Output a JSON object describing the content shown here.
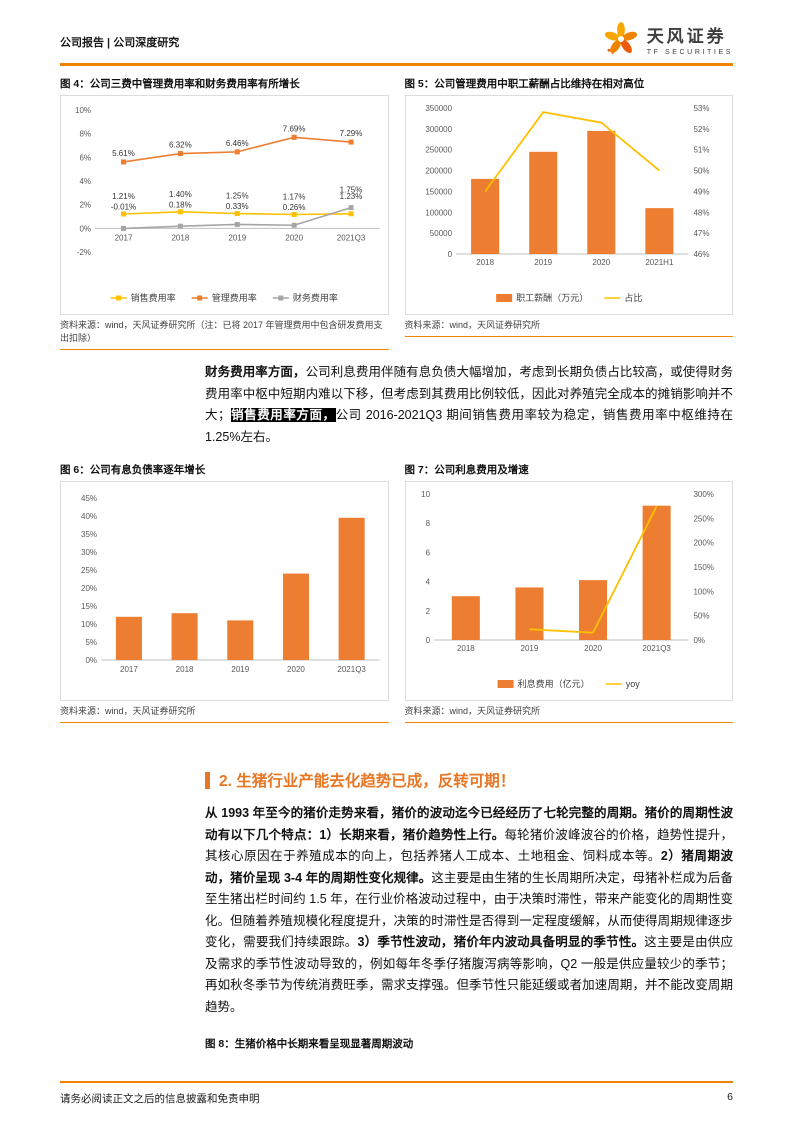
{
  "header": {
    "left": "公司报告 | 公司深度研究",
    "brand": {
      "name": "天风证券",
      "sub": "TF SECURITIES"
    }
  },
  "figures": {
    "fig4": {
      "title": "图 4：公司三费中管理费用率和财务费用率有所增长",
      "source": "资料来源：wind，天风证券研究所（注：已将 2017 年管理费用中包含研发费用支出扣除）"
    },
    "fig5": {
      "title": "图 5：公司管理费用中职工薪酬占比维持在相对高位",
      "source": "资料来源：wind，天风证券研究所"
    },
    "fig6": {
      "title": "图 6：公司有息负债率逐年增长",
      "source": "资料来源：wind，天风证券研究所"
    },
    "fig7": {
      "title": "图 7：公司利息费用及增速",
      "source": "资料来源：wind，天风证券研究所"
    },
    "fig8": {
      "title": "图 8：生猪价格中长期来看呈现显著周期波动"
    }
  },
  "body": {
    "para1_runs": [
      {
        "t": "财务费用率方面，",
        "s": "bold"
      },
      {
        "t": "公司利息费用伴随有息负债大幅增加，考虑到长期负债占比较高，或使得财务费用率中枢中短期内难以下移，但考虑到其费用比例较低，因此对养殖完全成本的摊销影响并不大；",
        "s": "normal"
      },
      {
        "t": "销售费用率方面，",
        "s": "highlight"
      },
      {
        "t": "公司 2016-2021Q3 期间销售费用率较为稳定，销售费用率中枢维持在 1.25%左右。",
        "s": "normal"
      }
    ],
    "para2_runs": [
      {
        "t": "从 1993 年至今的猪价走势来看，猪价的波动迄今已经经历了七轮完整的周期。猪价的周期性波动有以下几个特点：1）长期来看，猪价趋势性上行。",
        "s": "bold"
      },
      {
        "t": "每轮猪价波峰波谷的价格，趋势性提升，其核心原因在于养殖成本的向上，包括养猪人工成本、土地租金、饲料成本等。",
        "s": "normal"
      },
      {
        "t": "2）猪周期波动，猪价呈现 3-4 年的周期性变化规律。",
        "s": "bold"
      },
      {
        "t": "这主要是由生猪的生长周期所决定，母猪补栏成为后备至生猪出栏时间约 1.5 年，在行业价格波动过程中，由于决策时滞性，带来产能变化的周期性变化。但随着养殖规模化程度提升，决策的时滞性是否得到一定程度缓解，从而使得周期规律逐步变化，需要我们持续跟踪。",
        "s": "normal"
      },
      {
        "t": "3）季节性波动，猪价年内波动具备明显的季节性。",
        "s": "bold"
      },
      {
        "t": "这主要是由供应及需求的季节性波动导致的，例如每年冬季仔猪腹泻病等影响，Q2 一般是供应量较少的季节；再如秋冬季节为传统消费旺季，需求支撑强。但季节性只能延缓或者加速周期，并不能改变周期趋势。",
        "s": "normal"
      }
    ]
  },
  "section2": {
    "heading": "2. 生猪行业产能去化趋势已成，反转可期！"
  },
  "footer": {
    "disclaimer": "请务必阅读正文之后的信息披露和免责申明",
    "page": "6"
  },
  "chart_data": [
    {
      "id": "fig4",
      "type": "line",
      "title": "图 4：公司三费中管理费用率和财务费用率有所增长",
      "categories": [
        "2017",
        "2018",
        "2019",
        "2020",
        "2021Q3"
      ],
      "series": [
        {
          "name": "销售费用率",
          "color": "#FFC000",
          "values": [
            1.21,
            1.4,
            1.25,
            1.17,
            1.23
          ],
          "labels": [
            "1.21%",
            "1.40%",
            "1.25%",
            "1.17%",
            "1.23%"
          ]
        },
        {
          "name": "管理费用率",
          "color": "#ED7D31",
          "values": [
            5.61,
            6.32,
            6.46,
            7.69,
            7.29
          ],
          "labels": [
            "5.61%",
            "6.32%",
            "6.46%",
            "7.69%",
            "7.29%"
          ]
        },
        {
          "name": "财务费用率",
          "color": "#A5A5A5",
          "values": [
            -0.01,
            0.18,
            0.33,
            0.26,
            1.75
          ],
          "labels": [
            "-0.01%",
            "0.18%",
            "0.33%",
            "0.26%",
            "1.75%"
          ]
        }
      ],
      "ylim": [
        -2,
        10
      ],
      "ytick_step": 2,
      "y_suffix": "%",
      "legend_position": "bottom"
    },
    {
      "id": "fig5",
      "type": "combo",
      "title": "图 5：公司管理费用中职工薪酬占比维持在相对高位",
      "categories": [
        "2018",
        "2019",
        "2020",
        "2021H1"
      ],
      "bar_series": {
        "name": "职工薪酬（万元）",
        "color": "#ED7D31",
        "values": [
          180000,
          245000,
          295000,
          110000
        ]
      },
      "line_series": {
        "name": "占比",
        "color": "#FFC000",
        "values": [
          49.0,
          52.8,
          52.3,
          50.0
        ]
      },
      "left_ylim": [
        0,
        350000
      ],
      "left_step": 50000,
      "right_ylim": [
        46,
        53
      ],
      "right_step": 1,
      "right_suffix": "%",
      "legend_position": "bottom"
    },
    {
      "id": "fig6",
      "type": "bar",
      "title": "图 6：公司有息负债率逐年增长",
      "categories": [
        "2017",
        "2018",
        "2019",
        "2020",
        "2021Q3"
      ],
      "values": [
        12,
        13,
        11,
        24,
        39.5
      ],
      "color": "#ED7D31",
      "ylim": [
        0,
        45
      ],
      "ytick_step": 5,
      "y_suffix": "%"
    },
    {
      "id": "fig7",
      "type": "combo",
      "title": "图 7：公司利息费用及增速",
      "categories": [
        "2018",
        "2019",
        "2020",
        "2021Q3"
      ],
      "bar_series": {
        "name": "利息费用（亿元）",
        "color": "#ED7D31",
        "values": [
          3.0,
          3.6,
          4.1,
          9.2
        ]
      },
      "line_series": {
        "name": "yoy",
        "color": "#FFC000",
        "values": [
          null,
          22,
          15,
          275
        ]
      },
      "left_ylim": [
        0,
        10
      ],
      "left_step": 2,
      "right_ylim": [
        0,
        300
      ],
      "right_step": 50,
      "right_suffix": "%",
      "legend_position": "bottom"
    }
  ]
}
